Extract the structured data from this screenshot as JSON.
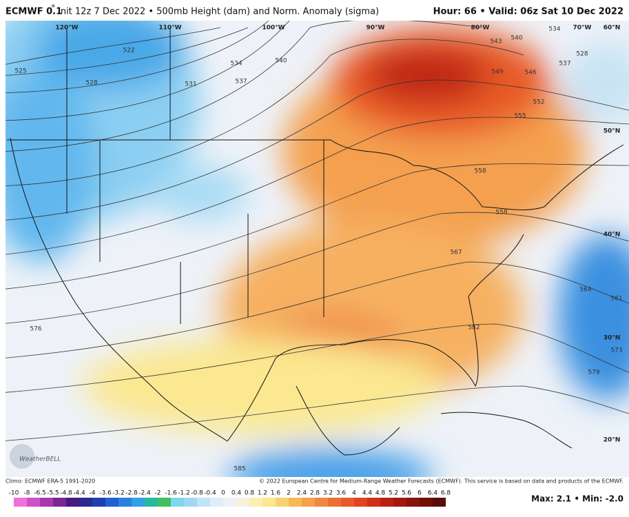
{
  "header": {
    "model": "ECMWF 0.1",
    "degree": "°",
    "title": "Init 12z 7 Dec 2022 • 500mb Height (dam) and Norm. Anomaly (sigma)",
    "valid": "Hour: 66 • Valid: 06z Sat 10 Dec 2022"
  },
  "map": {
    "geo_labels": [
      "120°W",
      "110°W",
      "100°W",
      "90°W",
      "80°W",
      "70°W",
      "60°N",
      "50°N",
      "40°N",
      "30°N",
      "20°N"
    ],
    "contour_labels": [
      "522",
      "525",
      "528",
      "531",
      "534",
      "537",
      "540",
      "540",
      "543",
      "546",
      "549",
      "552",
      "555",
      "558",
      "558",
      "561",
      "564",
      "567",
      "573",
      "576",
      "579",
      "582",
      "585",
      "528",
      "537",
      "534"
    ],
    "logo": "WeatherBELL"
  },
  "footer": {
    "climo": "Climo: ECMWF ERA-5 1991-2020",
    "copyright": "© 2022 European Centre for Medium-Range Weather Forecasts (ECMWF). This service is based on data and products of the ECMWF.",
    "maxmin": "Max: 2.1 • Min: -2.0"
  },
  "colorbar": {
    "labels": [
      "-10",
      "-8",
      "-6.5",
      "-5.5",
      "-4.8",
      "-4.4",
      "-4",
      "-3.6",
      "-3.2",
      "-2.8",
      "-2.4",
      "-2",
      "-1.6",
      "-1.2",
      "-0.8",
      "-0.4",
      "0",
      "0.4",
      "0.8",
      "1.2",
      "1.6",
      "2",
      "2.4",
      "2.8",
      "3.2",
      "3.6",
      "4",
      "4.4",
      "4.8",
      "5.2",
      "5.6",
      "6",
      "6.4",
      "6.8"
    ],
    "colors": [
      "#f070d8",
      "#d050c8",
      "#a838b0",
      "#7a2890",
      "#4a1a80",
      "#2a2a90",
      "#1e40b0",
      "#2060d0",
      "#2a80e0",
      "#30a0e8",
      "#28b8a0",
      "#40c060",
      "#80d8f0",
      "#a0d8f4",
      "#c0e4f8",
      "#dceef8",
      "#eef2f8",
      "#f6f2e0",
      "#fbf0b0",
      "#fbe890",
      "#fad070",
      "#f8b858",
      "#f6a048",
      "#f08840",
      "#ec7034",
      "#e85a28",
      "#e04420",
      "#d0301a",
      "#b82014",
      "#a01810",
      "#881410",
      "#701008",
      "#5a0c08"
    ]
  }
}
